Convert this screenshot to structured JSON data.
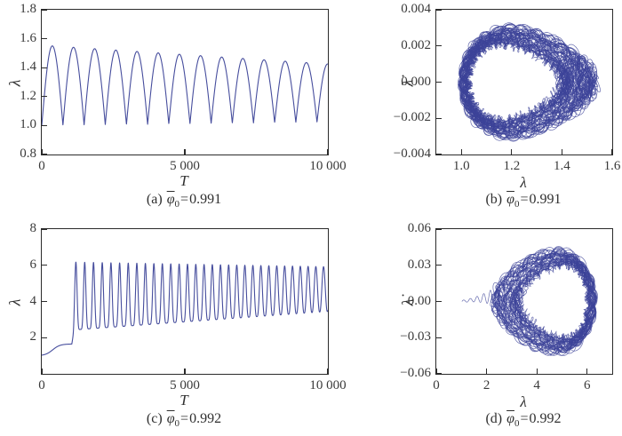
{
  "figure": {
    "background": "#ffffff",
    "line_color": "#3c4398",
    "axis_color": "#2b2b2b",
    "text_color": "#2f2f2f"
  },
  "chart_data": [
    {
      "id": "a",
      "type": "line",
      "kind": "time-series",
      "xlabel": "T",
      "ylabel": "λ",
      "caption": {
        "prefix": "(a)",
        "symbol": "φ",
        "sub": "0",
        "eq": "=",
        "value": "0.991"
      },
      "xlim": [
        0,
        10000
      ],
      "ylim": [
        0.8,
        1.8
      ],
      "xticks": [
        {
          "v": 0,
          "l": "0"
        },
        {
          "v": 5000,
          "l": "5 000"
        },
        {
          "v": 10000,
          "l": "10 000"
        }
      ],
      "yticks": [
        {
          "v": 0.8,
          "l": "0.8"
        },
        {
          "v": 1.0,
          "l": "1.0"
        },
        {
          "v": 1.2,
          "l": "1.2"
        },
        {
          "v": 1.4,
          "l": "1.4"
        },
        {
          "v": 1.6,
          "l": "1.6"
        },
        {
          "v": 1.8,
          "l": "1.8"
        }
      ],
      "description": "lambda oscillates in rounded humps: minima ~1.00-1.03, peaks decay from 1.55 to 1.42, ~13.5 humps over T=0..10000",
      "model": {
        "type": "humps",
        "points": 2600,
        "period": 740,
        "base_start": 1.0,
        "base_end": 1.025,
        "amp_start": 0.555,
        "amp_end": 0.4
      }
    },
    {
      "id": "b",
      "type": "line",
      "kind": "phase-portrait",
      "xlabel": "λ",
      "ylabel": "λ̇",
      "caption": {
        "prefix": "(b)",
        "symbol": "φ",
        "sub": "0",
        "eq": "=",
        "value": "0.991"
      },
      "xlim": [
        0.9,
        1.6
      ],
      "ylim": [
        -0.004,
        0.004
      ],
      "xticks": [
        {
          "v": 1.0,
          "l": "1.0"
        },
        {
          "v": 1.2,
          "l": "1.2"
        },
        {
          "v": 1.4,
          "l": "1.4"
        },
        {
          "v": 1.6,
          "l": "1.6"
        }
      ],
      "yticks": [
        {
          "v": 0.004,
          "l": "0.004"
        },
        {
          "v": 0.002,
          "l": "0.002"
        },
        {
          "v": 0.0,
          "l": "0.000"
        },
        {
          "v": -0.002,
          "l": "−0.002"
        },
        {
          "v": -0.004,
          "l": "−0.004"
        }
      ],
      "description": "quasi-periodic torus band: egg-shaped annulus, lambda 1.0-1.56, lambda-dot up to ±0.003, dense tangle at right side near lambda 1.4-1.56",
      "model": {
        "type": "loop-band",
        "loops": 48,
        "points_per_loop": 420,
        "anchor": "left",
        "anchor_pos": 1.0,
        "anchor_jitter": 0.03,
        "rx_min": 0.195,
        "rx_max": 0.255,
        "ry_min": 0.00205,
        "ry_max": 0.00275,
        "skew": -0.32,
        "ripple_mul": 0.09,
        "ripple_mul_f": 13,
        "curl_x": 0.011,
        "curl_y": 0.00015,
        "curl_f": 29,
        "x_ripple": 0.004,
        "x_ripple_f": 7,
        "ripple_add": 0.00038,
        "ripple_add_f": 23,
        "dense_side": "right"
      }
    },
    {
      "id": "c",
      "type": "line",
      "kind": "time-series",
      "xlabel": "T",
      "ylabel": "λ",
      "caption": {
        "prefix": "(c)",
        "symbol": "φ",
        "sub": "0",
        "eq": "=",
        "value": "0.992"
      },
      "xlim": [
        0,
        10000
      ],
      "ylim": [
        0,
        8
      ],
      "xticks": [
        {
          "v": 0,
          "l": "0"
        },
        {
          "v": 5000,
          "l": "5 000"
        },
        {
          "v": 10000,
          "l": "10 000"
        }
      ],
      "yticks": [
        {
          "v": 2,
          "l": "2"
        },
        {
          "v": 4,
          "l": "4"
        },
        {
          "v": 6,
          "l": "6"
        },
        {
          "v": 8,
          "l": "8"
        }
      ],
      "description": "slow rise from 1.0 to plateau ~1.65 until T~1050, then ~30 sharp spikes: peaks ~6.15 easing to ~5.9, valleys rising 2.4 to 3.45, spikes become more sinusoidal late",
      "model": {
        "type": "spiky",
        "points": 3200,
        "t_onset": 1050,
        "pre_start": 1.0,
        "pre_rise": 0.65,
        "pre_center": 380,
        "pre_width": 130,
        "period_start": 310,
        "period_end": 268,
        "phase0": 0.25,
        "sharp_start": 3.0,
        "sharp_end": 1.15,
        "blend": 80,
        "vmin_start": 2.42,
        "vmin_end": 3.45,
        "vmax_start": 6.18,
        "vmax_end": 5.92
      }
    },
    {
      "id": "d",
      "type": "line",
      "kind": "phase-portrait",
      "xlabel": "λ",
      "ylabel": "λ̇",
      "caption": {
        "prefix": "(d)",
        "symbol": "φ",
        "sub": "0",
        "eq": "=",
        "value": "0.992"
      },
      "xlim": [
        0,
        7
      ],
      "ylim": [
        -0.06,
        0.06
      ],
      "xticks": [
        {
          "v": 0,
          "l": "0"
        },
        {
          "v": 2,
          "l": "2"
        },
        {
          "v": 4,
          "l": "4"
        },
        {
          "v": 6,
          "l": "6"
        }
      ],
      "yticks": [
        {
          "v": 0.06,
          "l": "0.06"
        },
        {
          "v": 0.03,
          "l": "0.03"
        },
        {
          "v": 0.0,
          "l": "0.00"
        },
        {
          "v": -0.03,
          "l": "−0.03"
        },
        {
          "v": -0.06,
          "l": "−0.06"
        }
      ],
      "description": "transient squiggle from lambda~1 near lambda-dot 0 growing to lambda~2.6, then large ring band: lambda 2.4-6.3, lambda-dot up to ±0.045, thick right edge near lambda 6, fuzzy left side",
      "model": {
        "type": "loop-band",
        "loops": 42,
        "points_per_loop": 400,
        "anchor": "right",
        "anchor_pos": 6.3,
        "anchor_jitter": 0.28,
        "rx_min": 1.45,
        "rx_max": 1.9,
        "ry_min": 0.0295,
        "ry_max": 0.039,
        "skew": 0.3,
        "ripple_mul": 0.08,
        "ripple_mul_f": 11,
        "curl_x": 0.09,
        "curl_y": 0.002,
        "curl_f": 21,
        "x_ripple": 0.04,
        "x_ripple_f": 6,
        "ripple_add": 0.003,
        "ripple_add_f": 19,
        "dense_side": "left",
        "transient": {
          "x0": 1.02,
          "x1": 2.62,
          "amp0": 0.001,
          "amp1": 0.0105,
          "cycles": 6,
          "drift": 0.005,
          "points": 400
        }
      }
    }
  ]
}
